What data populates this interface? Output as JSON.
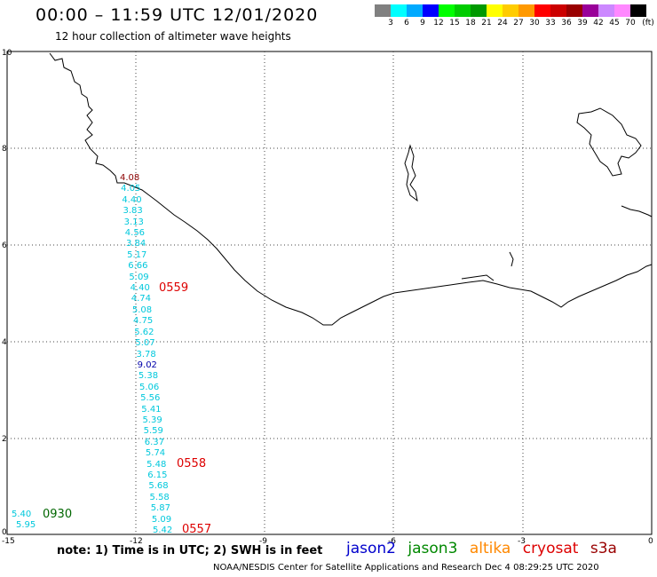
{
  "title": "00:00 – 11:59 UTC 12/01/2020",
  "subtitle": "12 hour collection of altimeter wave heights",
  "legend": {
    "unit_label": "(ft)",
    "colors": [
      "#808080",
      "#00ffff",
      "#00aaff",
      "#0000ff",
      "#00ff00",
      "#00cc00",
      "#009900",
      "#ffff00",
      "#ffcc00",
      "#ff9900",
      "#ff0000",
      "#cc0000",
      "#990000",
      "#990099",
      "#cc88ff",
      "#ff88ff",
      "#000000"
    ],
    "labels": [
      "3",
      "6",
      "9",
      "12",
      "15",
      "18",
      "21",
      "24",
      "27",
      "30",
      "33",
      "36",
      "39",
      "42",
      "45",
      "70"
    ]
  },
  "axes": {
    "x_ticks": [
      "-15",
      "-12",
      "-9",
      "-6",
      "-3",
      "0"
    ],
    "y_ticks": [
      "10",
      "8",
      "6",
      "4",
      "2",
      "0"
    ]
  },
  "passes": [
    {
      "label": "0559",
      "color": "#dd0000"
    },
    {
      "label": "0558",
      "color": "#dd0000"
    },
    {
      "label": "0557",
      "color": "#dd0000"
    },
    {
      "label": "0930",
      "color": "#006600"
    }
  ],
  "wave_heights": {
    "main_track": [
      "4.08",
      "4.05",
      "4.40",
      "3.83",
      "3.13",
      "4.56",
      "3.84",
      "5.17",
      "6.66",
      "5.09",
      "4.40",
      "4.74",
      "5.08",
      "4.75",
      "5.62",
      "5.07",
      "3.78",
      "9.02",
      "5.38",
      "5.06",
      "5.56",
      "5.41",
      "5.39",
      "5.59",
      "6.37",
      "5.74",
      "5.48",
      "6.15",
      "5.68",
      "5.58",
      "5.87",
      "5.09",
      "5.42"
    ],
    "west_track": [
      "5.40",
      "5.95"
    ]
  },
  "footer": {
    "note": "note: 1) Time is in UTC; 2) SWH is in feet",
    "credit": "NOAA/NESDIS Center for Satellite Applications and Research    Dec  4 08:29:25 UTC 2020"
  },
  "satellites": [
    {
      "name": "jason2",
      "color": "#0000cc"
    },
    {
      "name": "jason3",
      "color": "#008800"
    },
    {
      "name": "altika",
      "color": "#ff8800"
    },
    {
      "name": "cryosat",
      "color": "#dd0000"
    },
    {
      "name": "s3a",
      "color": "#990000"
    }
  ]
}
